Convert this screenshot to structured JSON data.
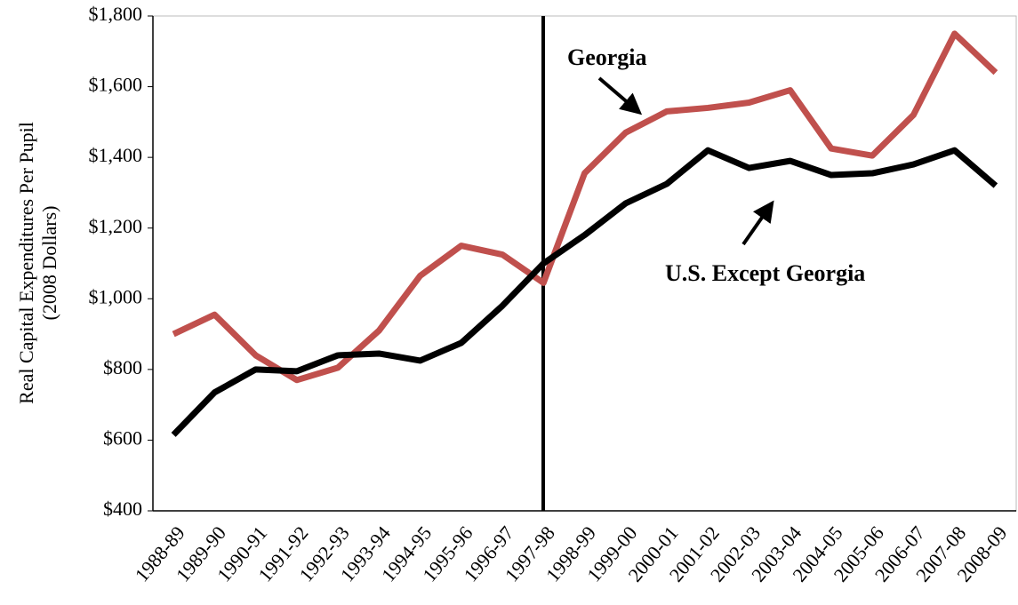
{
  "chart_data": {
    "type": "line",
    "ylabel_lines": [
      "Real Capital Expenditures Per Pupil",
      "(2008 Dollars)"
    ],
    "categories": [
      "1988-89",
      "1989-90",
      "1990-91",
      "1991-92",
      "1992-93",
      "1993-94",
      "1994-95",
      "1995-96",
      "1996-97",
      "1997-98",
      "1998-99",
      "1999-00",
      "2000-01",
      "2001-02",
      "2002-03",
      "2003-04",
      "2004-05",
      "2005-06",
      "2006-07",
      "2007-08",
      "2008-09"
    ],
    "series": [
      {
        "name": "Georgia",
        "color": "#c0504d",
        "values": [
          900,
          955,
          840,
          770,
          805,
          910,
          1065,
          1150,
          1125,
          1045,
          1355,
          1470,
          1530,
          1540,
          1555,
          1590,
          1425,
          1405,
          1520,
          1750,
          1640
        ]
      },
      {
        "name": "U.S. Except Georgia",
        "color": "#000000",
        "values": [
          615,
          735,
          800,
          795,
          840,
          845,
          825,
          875,
          980,
          1100,
          1180,
          1270,
          1325,
          1420,
          1370,
          1390,
          1350,
          1355,
          1380,
          1420,
          1320
        ]
      }
    ],
    "ylim": [
      400,
      1800
    ],
    "yticks": [
      {
        "value": 400,
        "label": "$400"
      },
      {
        "value": 600,
        "label": "$600"
      },
      {
        "value": 800,
        "label": "$800"
      },
      {
        "value": 1000,
        "label": "$1,000"
      },
      {
        "value": 1200,
        "label": "$1,200"
      },
      {
        "value": 1400,
        "label": "$1,400"
      },
      {
        "value": 1600,
        "label": "$1,600"
      },
      {
        "value": 1800,
        "label": "$1,800"
      }
    ],
    "grid": false
  }
}
